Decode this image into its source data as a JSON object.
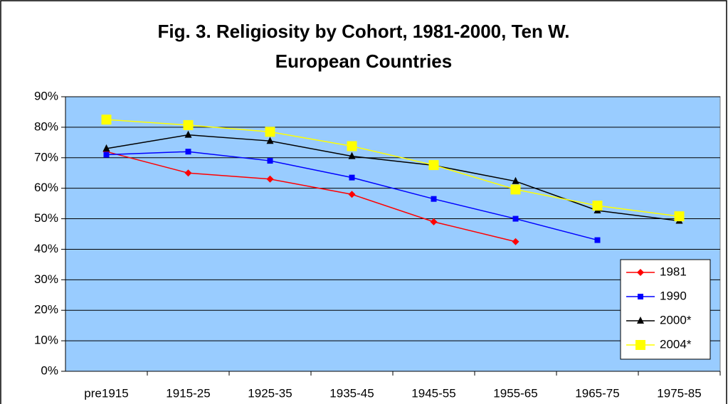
{
  "chart_data": {
    "type": "line",
    "title": [
      "Fig. 3. Religiosity by Cohort, 1981-2000, Ten W.",
      "European Countries"
    ],
    "categories": [
      "pre1915",
      "1915-25",
      "1925-35",
      "1935-45",
      "1945-55",
      "1955-65",
      "1965-75",
      "1975-85"
    ],
    "series": [
      {
        "name": "1981",
        "color": "#ff0000",
        "marker": "diamond",
        "values": [
          72,
          65,
          63,
          58,
          49,
          42.5,
          null,
          null
        ]
      },
      {
        "name": "1990",
        "color": "#0000ff",
        "marker": "square",
        "values": [
          71,
          72,
          69,
          63.5,
          56.5,
          50,
          43,
          null
        ]
      },
      {
        "name": "2000*",
        "color": "#000000",
        "marker": "triangle",
        "values": [
          73,
          77.5,
          75.5,
          70.5,
          67.5,
          62.3,
          52.7,
          49.3
        ]
      },
      {
        "name": "2004*",
        "color": "#ffff00",
        "marker": "big-square",
        "values": [
          82.5,
          80.7,
          78.5,
          73.8,
          67.6,
          59.6,
          54.3,
          50.8
        ]
      }
    ],
    "ylim": [
      0,
      90
    ],
    "yticks": [
      {
        "value": 0,
        "label": "0%"
      },
      {
        "value": 10,
        "label": "10%"
      },
      {
        "value": 20,
        "label": "20%"
      },
      {
        "value": 30,
        "label": "30%"
      },
      {
        "value": 40,
        "label": "40%"
      },
      {
        "value": 50,
        "label": "50%"
      },
      {
        "value": 60,
        "label": "60%"
      },
      {
        "value": 70,
        "label": "70%"
      },
      {
        "value": 80,
        "label": "80%"
      },
      {
        "value": 90,
        "label": "90%"
      }
    ],
    "grid": true,
    "plot_background": "#99ccff",
    "legend": "lower right"
  }
}
